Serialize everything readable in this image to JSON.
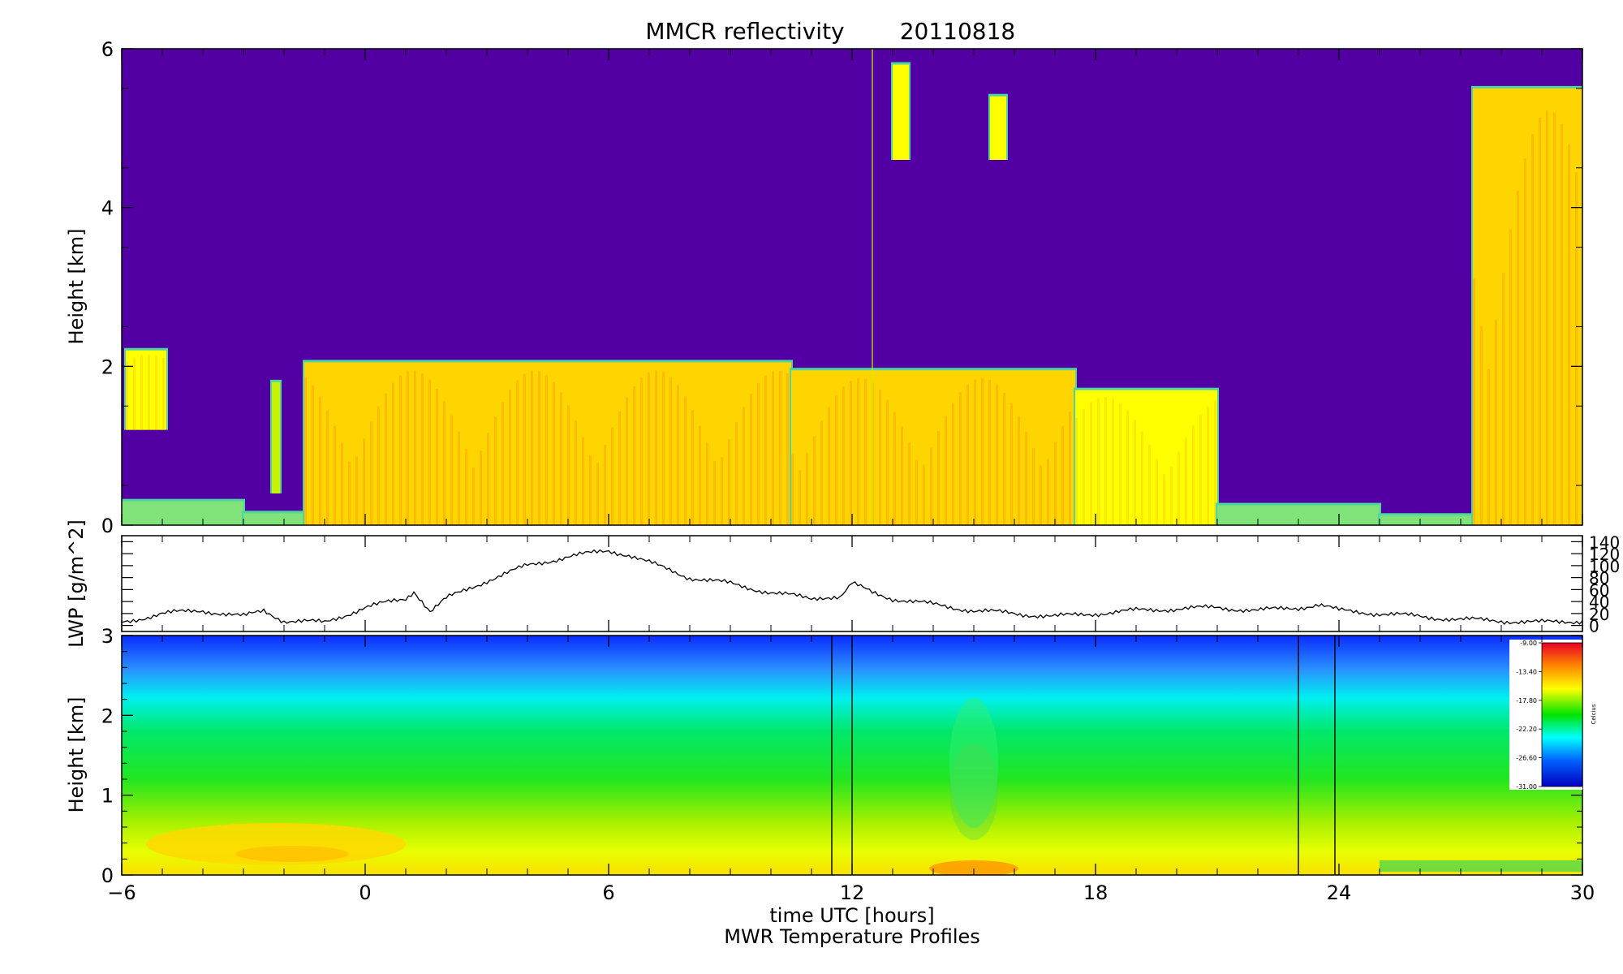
{
  "title": "MMCR reflectivity",
  "date": "20110818",
  "xlabel": "time UTC [hours]",
  "footer": "MWR Temperature Profiles",
  "chart_data": [
    {
      "type": "heatmap",
      "name": "radar",
      "ylabel": "Height [km]",
      "xlim": [
        -6,
        30
      ],
      "ylim": [
        0,
        6
      ],
      "yticks": [
        "0",
        "2",
        "4",
        "6"
      ],
      "background_color": "#5200a3",
      "palette": [
        "#7fe37a",
        "#c8f200",
        "#ffff00",
        "#ffd500",
        "#ffa600"
      ],
      "regions": [
        {
          "x0": -5.9,
          "x1": -4.9,
          "y0": 1.2,
          "y1": 2.2,
          "level": 2
        },
        {
          "x0": -6.0,
          "x1": -3.0,
          "y0": 0.0,
          "y1": 0.3,
          "level": 0
        },
        {
          "x0": -3.0,
          "x1": -1.5,
          "y0": 0.0,
          "y1": 0.15,
          "level": 0
        },
        {
          "x0": -2.3,
          "x1": -2.1,
          "y0": 0.4,
          "y1": 1.8,
          "level": 1
        },
        {
          "x0": -1.5,
          "x1": 10.5,
          "y0": 0.0,
          "y1": 2.05,
          "level": 3
        },
        {
          "x0": 10.5,
          "x1": 17.5,
          "y0": 0.0,
          "y1": 1.95,
          "level": 3
        },
        {
          "x0": 17.5,
          "x1": 21.0,
          "y0": 0.0,
          "y1": 1.7,
          "level": 2
        },
        {
          "x0": 13.0,
          "x1": 13.4,
          "y0": 4.6,
          "y1": 5.8,
          "level": 2
        },
        {
          "x0": 15.4,
          "x1": 15.8,
          "y0": 4.6,
          "y1": 5.4,
          "level": 2
        },
        {
          "x0": 21.0,
          "x1": 25.0,
          "y0": 0.0,
          "y1": 0.25,
          "level": 0
        },
        {
          "x0": 25.0,
          "x1": 27.3,
          "y0": 0.0,
          "y1": 0.12,
          "level": 0
        },
        {
          "x0": 27.3,
          "x1": 30.0,
          "y0": 0.0,
          "y1": 5.5,
          "level": 3
        }
      ],
      "markers": [
        12.5
      ]
    },
    {
      "type": "line",
      "name": "LWP",
      "ylabel": "LWP [g/m^2]",
      "xlim": [
        -6,
        30
      ],
      "ylim": [
        -10,
        150
      ],
      "yticks": [
        "0",
        "20",
        "40",
        "60",
        "80",
        "100",
        "120",
        "140"
      ],
      "series": [
        {
          "x": [
            -6,
            -5,
            -4,
            -3,
            -2.5,
            -2,
            -1,
            0,
            1,
            1.2,
            1.6,
            2,
            3,
            4,
            5,
            6,
            6.5,
            7,
            8,
            9,
            10,
            11,
            11.7,
            12,
            12.5,
            13,
            14,
            15,
            16,
            17,
            18,
            19,
            20,
            21,
            22,
            23,
            23.5,
            24,
            25,
            26,
            27,
            28,
            29,
            30
          ],
          "y": [
            5,
            20,
            25,
            15,
            25,
            8,
            5,
            30,
            45,
            55,
            20,
            45,
            75,
            100,
            115,
            125,
            118,
            105,
            80,
            70,
            55,
            45,
            50,
            70,
            55,
            45,
            35,
            25,
            20,
            15,
            20,
            25,
            28,
            30,
            25,
            30,
            35,
            25,
            20,
            15,
            10,
            8,
            5,
            8
          ]
        }
      ]
    },
    {
      "type": "heatmap",
      "name": "temperature",
      "ylabel": "Height [km]",
      "xlim": [
        -6,
        30
      ],
      "ylim": [
        0,
        3
      ],
      "yticks": [
        "0",
        "1",
        "2",
        "3"
      ],
      "colorbar": {
        "label": "Celcius",
        "ticks": [
          "-9.00",
          "-13.40",
          "-17.80",
          "-22.20",
          "-26.60",
          "-31.00"
        ],
        "colors": [
          "#e8002a",
          "#ff7f00",
          "#ffff00",
          "#00e400",
          "#00ffff",
          "#0060ff",
          "#0000c0"
        ]
      },
      "gaps": [
        [
          11.5,
          12.0
        ],
        [
          23.0,
          23.9
        ]
      ]
    }
  ]
}
